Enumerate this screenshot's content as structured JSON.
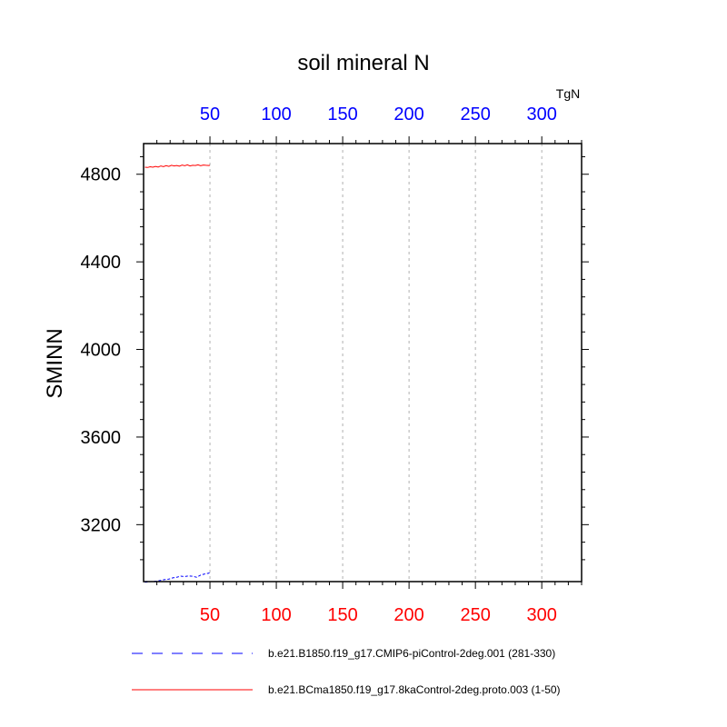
{
  "chart_data": {
    "type": "line",
    "title": "soil mineral N",
    "units": "TgN",
    "ylabel": "SMINN",
    "xlabel": "",
    "xlim": [
      0,
      330
    ],
    "ylim": [
      2940,
      4940
    ],
    "x_ticks_bottom": [
      50,
      100,
      150,
      200,
      250,
      300
    ],
    "x_ticks_top": [
      50,
      100,
      150,
      200,
      250,
      300
    ],
    "y_ticks": [
      3200,
      3600,
      4000,
      4400,
      4800
    ],
    "grid": "x dashed",
    "legend_position": "bottom",
    "colors": {
      "bottom_ticks": "#ff0000",
      "top_ticks": "#0000ff"
    },
    "series": [
      {
        "name": "b.e21.B1850.f19_g17.CMIP6-piControl-2deg.001 (281-330)",
        "color": "#0000ff",
        "style": "dashed",
        "x": [
          1,
          4,
          7,
          10,
          13,
          16,
          19,
          22,
          25,
          28,
          31,
          34,
          37,
          40,
          43,
          46,
          49,
          50
        ],
        "values": [
          2937,
          2939,
          2941,
          2942,
          2946,
          2949,
          2951,
          2957,
          2960,
          2965,
          2963,
          2966,
          2964,
          2960,
          2970,
          2975,
          2978,
          2982
        ]
      },
      {
        "name": "b.e21.BCma1850.f19_g17.8kaControl-2deg.proto.003 (1-50)",
        "color": "#ff0000",
        "style": "solid",
        "x": [
          1,
          3,
          5,
          7,
          9,
          11,
          13,
          15,
          17,
          19,
          21,
          23,
          25,
          27,
          29,
          31,
          33,
          35,
          37,
          39,
          41,
          43,
          45,
          47,
          49,
          50
        ],
        "values": [
          4832,
          4831,
          4834,
          4832,
          4836,
          4833,
          4838,
          4835,
          4839,
          4836,
          4841,
          4838,
          4840,
          4837,
          4842,
          4839,
          4843,
          4838,
          4841,
          4840,
          4843,
          4839,
          4842,
          4841,
          4840,
          4841
        ]
      }
    ]
  }
}
